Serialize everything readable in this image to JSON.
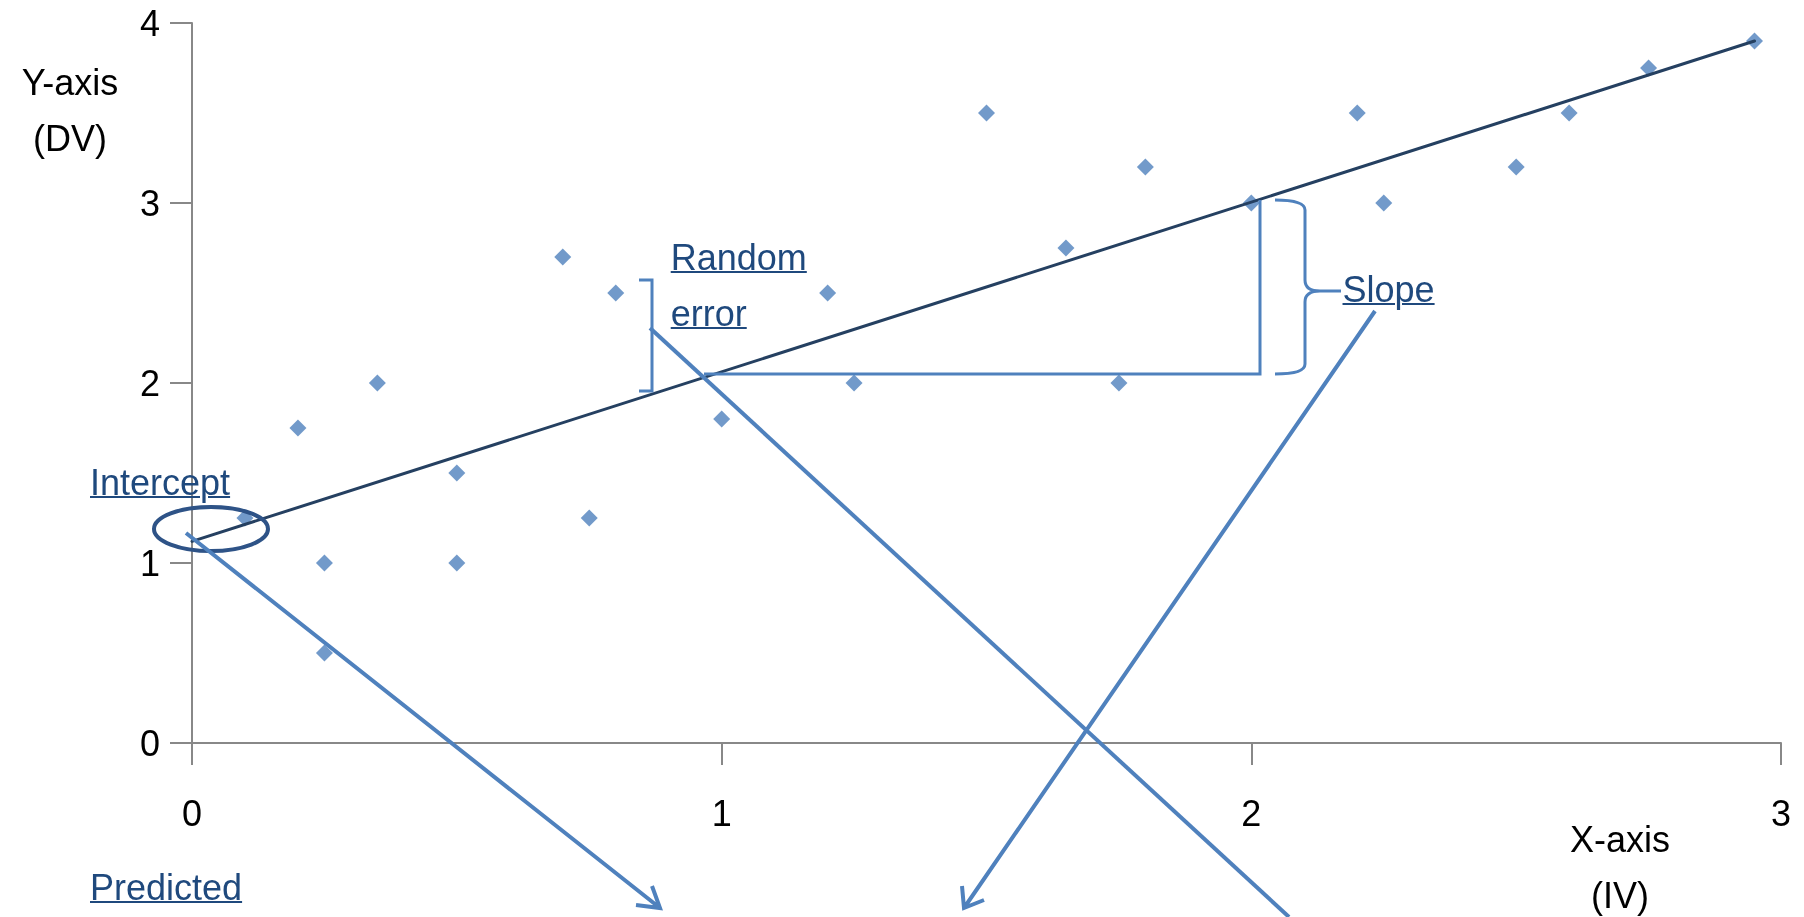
{
  "chart_data": {
    "type": "scatter",
    "xlabel": "X-axis (IV)",
    "ylabel": "Y-axis (DV)",
    "annotations": [
      {
        "text": "Intercept",
        "x": 0,
        "y": 1.12
      },
      {
        "text": "Random error",
        "x": 0.8,
        "y": 2.5
      },
      {
        "text": "Slope",
        "x": 2.04,
        "y": 3.04
      },
      "Predicted"
    ],
    "xlim": [
      0,
      3
    ],
    "xticks": [
      0,
      1,
      2,
      3
    ],
    "ylim": [
      0,
      4
    ],
    "yticks": [
      0,
      1,
      2,
      3,
      4
    ],
    "grid": false,
    "series": [
      {
        "type": "scatter",
        "color": "#4f81bd",
        "marker": "diamond",
        "x": [
          0.1,
          0.2,
          0.25,
          0.25,
          0.35,
          0.5,
          0.5,
          0.7,
          0.75,
          0.8,
          1.0,
          1.2,
          1.25,
          1.5,
          1.65,
          1.75,
          1.8,
          2.0,
          2.2,
          2.25,
          2.5,
          2.6,
          2.75,
          2.95
        ],
        "values": [
          1.25,
          1.75,
          1.0,
          0.5,
          2.0,
          1.5,
          1.0,
          2.7,
          1.25,
          2.5,
          1.8,
          2.5,
          2.0,
          3.5,
          2.75,
          2.0,
          3.2,
          3.0,
          3.5,
          3.0,
          3.2,
          3.5,
          3.75,
          3.9
        ]
      },
      {
        "type": "line",
        "color": "#254061",
        "marker": "none",
        "line_style": "solid",
        "x": [
          0,
          2.95
        ],
        "values": [
          1.12,
          3.9
        ]
      }
    ]
  }
}
